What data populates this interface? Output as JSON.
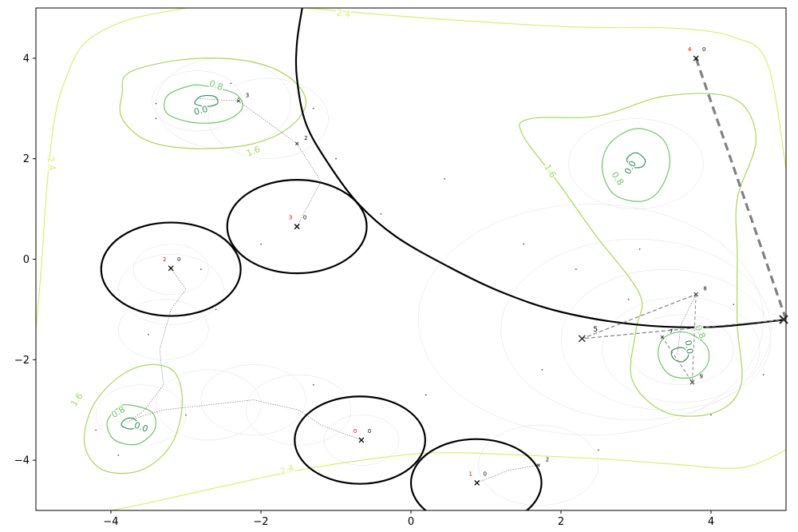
{
  "chart_data": {
    "type": "scatter",
    "title": "",
    "xlabel": "",
    "ylabel": "",
    "xlim": [
      -5,
      5
    ],
    "ylim": [
      -5,
      5
    ],
    "x_ticks": [
      -4,
      -2,
      0,
      2,
      4
    ],
    "y_ticks": [
      -4,
      -2,
      0,
      2,
      4
    ],
    "grid": false,
    "contour_levels": {
      "outer": {
        "color": "#d9ee6e",
        "label": "2.4"
      },
      "mid": {
        "color": "#a7d758",
        "label": "1.6"
      },
      "inner": {
        "color": "#74c46a",
        "label": "0.8"
      },
      "core": {
        "color": "#2f8f5b",
        "label": "0.0"
      }
    },
    "contours": [
      {
        "level": "outer",
        "points": [
          [
            -5,
            -1.4
          ],
          [
            -4.93,
            -0.2
          ],
          [
            -4.85,
            1.5
          ],
          [
            -4.75,
            2.8
          ],
          [
            -4.6,
            3.6
          ],
          [
            -4.35,
            4.3
          ],
          [
            -3.8,
            4.75
          ],
          [
            -3,
            5.0
          ]
        ]
      },
      {
        "level": "outer",
        "points": [
          [
            -1.4,
            5.0
          ],
          [
            0.2,
            4.8
          ],
          [
            2.2,
            4.62
          ],
          [
            3.5,
            4.6
          ],
          [
            4.3,
            4.42
          ],
          [
            4.75,
            3.9
          ],
          [
            5.0,
            1.8
          ]
        ]
      },
      {
        "level": "outer",
        "points": [
          [
            5.0,
            -3.8
          ],
          [
            4.4,
            -4.15
          ],
          [
            3.5,
            -4.08
          ],
          [
            2.6,
            -3.98
          ],
          [
            1.5,
            -3.9
          ],
          [
            0.4,
            -3.85
          ],
          [
            -0.4,
            -3.95
          ],
          [
            -1.5,
            -4.2
          ],
          [
            -2.6,
            -4.55
          ],
          [
            -3.5,
            -4.85
          ],
          [
            -4.0,
            -5.0
          ]
        ]
      },
      {
        "level": "mid",
        "points": [
          [
            -3.75,
            3.72
          ],
          [
            -3.0,
            3.98
          ],
          [
            -2.2,
            3.95
          ],
          [
            -1.65,
            3.65
          ],
          [
            -1.4,
            3.15
          ],
          [
            -1.6,
            2.65
          ],
          [
            -2.1,
            2.3
          ],
          [
            -2.85,
            2.2
          ],
          [
            -3.5,
            2.35
          ],
          [
            -3.85,
            2.8
          ],
          [
            -3.85,
            3.3
          ],
          [
            -3.75,
            3.72
          ]
        ]
      },
      {
        "level": "mid",
        "points": [
          [
            -3.5,
            -2.1
          ],
          [
            -3.15,
            -2.25
          ],
          [
            -3.05,
            -2.9
          ],
          [
            -3.2,
            -3.7
          ],
          [
            -3.6,
            -4.2
          ],
          [
            -4.1,
            -4.2
          ],
          [
            -4.35,
            -3.7
          ],
          [
            -4.25,
            -2.95
          ],
          [
            -3.9,
            -2.35
          ],
          [
            -3.5,
            -2.1
          ]
        ]
      },
      {
        "level": "mid",
        "points": [
          [
            2.5,
            2.85
          ],
          [
            3.4,
            3.25
          ],
          [
            4.3,
            3.2
          ],
          [
            4.6,
            2.4
          ],
          [
            4.35,
            1.2
          ],
          [
            4.35,
            0.1
          ],
          [
            4.35,
            -1.3
          ],
          [
            4.4,
            -2.5
          ],
          [
            4.05,
            -3.05
          ],
          [
            3.4,
            -3.05
          ],
          [
            2.95,
            -2.4
          ],
          [
            3.0,
            -1.4
          ],
          [
            3.05,
            -0.7
          ],
          [
            2.45,
            0.5
          ],
          [
            1.95,
            1.55
          ],
          [
            1.48,
            2.5
          ],
          [
            1.6,
            2.8
          ],
          [
            2.5,
            2.85
          ]
        ]
      },
      {
        "level": "inner",
        "points": [
          [
            -2.75,
            3.45
          ],
          [
            -2.35,
            3.3
          ],
          [
            -2.25,
            3.0
          ],
          [
            -2.5,
            2.75
          ],
          [
            -2.9,
            2.72
          ],
          [
            -3.25,
            2.9
          ],
          [
            -3.25,
            3.25
          ],
          [
            -2.95,
            3.45
          ],
          [
            -2.75,
            3.45
          ]
        ]
      },
      {
        "level": "inner",
        "points": [
          [
            -3.75,
            -2.9
          ],
          [
            -3.45,
            -3.05
          ],
          [
            -3.42,
            -3.4
          ],
          [
            -3.65,
            -3.68
          ],
          [
            -3.95,
            -3.6
          ],
          [
            -4.05,
            -3.25
          ],
          [
            -3.9,
            -2.95
          ],
          [
            -3.75,
            -2.9
          ]
        ]
      },
      {
        "level": "inner",
        "points": [
          [
            3.0,
            2.6
          ],
          [
            3.35,
            2.4
          ],
          [
            3.45,
            1.9
          ],
          [
            3.3,
            1.35
          ],
          [
            3.05,
            1.15
          ],
          [
            2.7,
            1.3
          ],
          [
            2.55,
            1.8
          ],
          [
            2.65,
            2.3
          ],
          [
            3.0,
            2.6
          ]
        ]
      },
      {
        "level": "inner",
        "points": [
          [
            3.75,
            -1.5
          ],
          [
            3.95,
            -1.75
          ],
          [
            3.95,
            -2.1
          ],
          [
            3.75,
            -2.35
          ],
          [
            3.45,
            -2.3
          ],
          [
            3.3,
            -1.95
          ],
          [
            3.35,
            -1.6
          ],
          [
            3.55,
            -1.45
          ],
          [
            3.75,
            -1.5
          ]
        ]
      },
      {
        "level": "core",
        "points": [
          [
            -2.62,
            3.24
          ],
          [
            -2.58,
            3.1
          ],
          [
            -2.72,
            3.04
          ],
          [
            -2.88,
            3.1
          ],
          [
            -2.8,
            3.24
          ],
          [
            -2.62,
            3.24
          ]
        ]
      },
      {
        "level": "core",
        "points": [
          [
            -3.7,
            -3.17
          ],
          [
            -3.63,
            -3.3
          ],
          [
            -3.74,
            -3.38
          ],
          [
            -3.86,
            -3.3
          ],
          [
            -3.8,
            -3.18
          ],
          [
            -3.7,
            -3.17
          ]
        ]
      },
      {
        "level": "core",
        "points": [
          [
            3.0,
            2.12
          ],
          [
            3.12,
            1.98
          ],
          [
            3.08,
            1.84
          ],
          [
            2.94,
            1.84
          ],
          [
            2.88,
            2.0
          ],
          [
            3.0,
            2.12
          ]
        ]
      },
      {
        "level": "core",
        "points": [
          [
            3.62,
            -1.76
          ],
          [
            3.7,
            -1.9
          ],
          [
            3.62,
            -2.04
          ],
          [
            3.5,
            -1.98
          ],
          [
            3.48,
            -1.82
          ],
          [
            3.62,
            -1.76
          ]
        ]
      }
    ],
    "contour_labels": [
      {
        "level": "outer",
        "x": -0.9,
        "y": 4.88,
        "angle": 8
      },
      {
        "level": "outer",
        "x": -4.8,
        "y": 1.9,
        "angle": 80
      },
      {
        "level": "outer",
        "x": -1.65,
        "y": -4.2,
        "angle": -18
      },
      {
        "level": "mid",
        "x": -2.1,
        "y": 2.14,
        "angle": -22
      },
      {
        "level": "mid",
        "x": -4.45,
        "y": -2.8,
        "angle": -55
      },
      {
        "level": "mid",
        "x": 1.85,
        "y": 1.75,
        "angle": 60
      },
      {
        "level": "inner",
        "x": -2.6,
        "y": 3.45,
        "angle": 20
      },
      {
        "level": "inner",
        "x": -3.9,
        "y": -3.05,
        "angle": -30
      },
      {
        "level": "inner",
        "x": 2.75,
        "y": 1.6,
        "angle": 55
      },
      {
        "level": "inner",
        "x": 3.85,
        "y": -1.45,
        "angle": 65
      },
      {
        "level": "core",
        "x": -2.8,
        "y": 2.95,
        "angle": -15
      },
      {
        "level": "core",
        "x": 2.93,
        "y": 1.82,
        "angle": -60
      },
      {
        "level": "core",
        "x": 3.7,
        "y": -1.75,
        "angle": 80
      },
      {
        "level": "core",
        "x": -3.6,
        "y": -3.35,
        "angle": 20
      }
    ],
    "boundary_curve": [
      [
        -1.45,
        5.0
      ],
      [
        -1.52,
        4.3
      ],
      [
        -1.52,
        3.6
      ],
      [
        -1.4,
        2.7
      ],
      [
        -1.1,
        1.9
      ],
      [
        -0.7,
        1.1
      ],
      [
        -0.2,
        0.45
      ],
      [
        0.5,
        -0.15
      ],
      [
        1.2,
        -0.65
      ],
      [
        2.0,
        -1.05
      ],
      [
        3.0,
        -1.3
      ],
      [
        4.0,
        -1.35
      ],
      [
        5.0,
        -1.2
      ]
    ],
    "obstacles": [
      {
        "cx": -3.2,
        "cy": -0.2,
        "rx": 0.93,
        "ry": 0.93
      },
      {
        "cx": -1.52,
        "cy": 0.65,
        "rx": 0.93,
        "ry": 0.93
      },
      {
        "cx": -0.68,
        "cy": -3.6,
        "rx": 0.87,
        "ry": 0.87
      },
      {
        "cx": 0.87,
        "cy": -4.45,
        "rx": 0.87,
        "ry": 0.87
      }
    ],
    "agents": [
      {
        "x": -0.66,
        "y": -3.6,
        "id": "0",
        "count": "0"
      },
      {
        "x": 0.88,
        "y": -4.45,
        "id": "1",
        "count": "0"
      },
      {
        "x": -3.2,
        "y": -0.18,
        "id": "2",
        "count": "0"
      },
      {
        "x": -1.52,
        "y": 0.65,
        "id": "3",
        "count": "0"
      },
      {
        "x": 3.8,
        "y": 4.0,
        "id": "4",
        "count": "0"
      }
    ],
    "agent_id_color": "#dd0000",
    "dashed_paths": [
      {
        "points": [
          [
            3.8,
            4.0
          ],
          [
            5.0,
            -1.2
          ]
        ],
        "width": 3.2,
        "dash": "10,6"
      },
      {
        "points": [
          [
            5.0,
            -1.2
          ],
          [
            2.28,
            -1.58
          ],
          [
            3.8,
            -0.7
          ]
        ],
        "width": 1.2,
        "dash": "5,3"
      },
      {
        "points": [
          [
            3.8,
            -0.7
          ],
          [
            3.75,
            -2.45
          ],
          [
            3.35,
            -1.55
          ]
        ],
        "width": 1.0,
        "dash": "4,3"
      }
    ],
    "path_markers": [
      {
        "x": 2.28,
        "y": -1.58,
        "label": "5",
        "size": "large"
      },
      {
        "x": 3.8,
        "y": -0.7,
        "label": "8",
        "size": "small"
      },
      {
        "x": 3.75,
        "y": -2.45,
        "label": "9",
        "size": "small"
      },
      {
        "x": 3.35,
        "y": -1.55,
        "label": "7",
        "size": "tiny"
      },
      {
        "x": -1.52,
        "y": 2.3,
        "label": "2",
        "size": "tiny"
      },
      {
        "x": -2.3,
        "y": 3.15,
        "label": "3",
        "size": "tiny"
      },
      {
        "x": 1.7,
        "y": -4.1,
        "label": "2",
        "size": "tiny"
      }
    ],
    "end_marker": {
      "x": 5.0,
      "y": -1.2
    },
    "dotted_paths": [
      [
        [
          -1.52,
          0.65
        ],
        [
          -1.2,
          1.55
        ],
        [
          -1.52,
          2.3
        ],
        [
          -2.3,
          3.15
        ],
        [
          -2.85,
          3.2
        ]
      ],
      [
        [
          -3.2,
          -0.18
        ],
        [
          -3.0,
          -0.6
        ],
        [
          -3.2,
          -1.0
        ],
        [
          -3.35,
          -1.8
        ],
        [
          -3.3,
          -2.5
        ],
        [
          -3.55,
          -3.0
        ],
        [
          -3.78,
          -3.25
        ]
      ],
      [
        [
          -0.66,
          -3.6
        ],
        [
          -1.2,
          -3.3
        ],
        [
          -1.5,
          -3.0
        ],
        [
          -2.1,
          -2.8
        ],
        [
          -2.7,
          -2.9
        ],
        [
          -3.3,
          -3.0
        ],
        [
          -3.75,
          -3.2
        ]
      ],
      [
        [
          0.88,
          -4.45
        ],
        [
          1.3,
          -4.2
        ],
        [
          1.7,
          -4.1
        ]
      ],
      [
        [
          3.8,
          -0.7
        ],
        [
          3.6,
          -1.3
        ],
        [
          3.55,
          -1.9
        ]
      ]
    ],
    "faint_circles": [
      {
        "cx": 3.6,
        "cy": -1.8,
        "r": 0.7
      },
      {
        "cx": 3.6,
        "cy": -1.8,
        "r": 1.05
      },
      {
        "cx": 3.4,
        "cy": -1.6,
        "r": 1.4
      },
      {
        "cx": 3.0,
        "cy": -1.4,
        "r": 1.8
      },
      {
        "cx": 2.4,
        "cy": -1.2,
        "r": 2.3
      },
      {
        "cx": -3.2,
        "cy": -0.2,
        "r": 0.5
      },
      {
        "cx": -3.2,
        "cy": -0.6,
        "r": 0.7
      },
      {
        "cx": -3.3,
        "cy": -1.4,
        "r": 0.6
      },
      {
        "cx": -3.6,
        "cy": -3.1,
        "r": 0.6
      },
      {
        "cx": -2.7,
        "cy": -2.9,
        "r": 0.7
      },
      {
        "cx": -2.1,
        "cy": -2.8,
        "r": 0.7
      },
      {
        "cx": -1.5,
        "cy": -3.0,
        "r": 0.7
      },
      {
        "cx": -0.66,
        "cy": -3.6,
        "r": 0.5
      },
      {
        "cx": 1.7,
        "cy": -4.1,
        "r": 0.8
      },
      {
        "cx": 3.0,
        "cy": 1.9,
        "r": 0.9
      },
      {
        "cx": -2.85,
        "cy": 3.15,
        "r": 0.6
      },
      {
        "cx": -2.5,
        "cy": 3.1,
        "r": 0.9
      },
      {
        "cx": -1.9,
        "cy": 2.8,
        "r": 0.8
      }
    ],
    "scatter_dots": [
      [
        -1.0,
        2.0
      ],
      [
        -1.3,
        3.0
      ],
      [
        0.45,
        1.6
      ],
      [
        -0.4,
        0.9
      ],
      [
        1.5,
        0.3
      ],
      [
        2.2,
        -0.2
      ],
      [
        3.05,
        0.2
      ],
      [
        2.9,
        -0.8
      ],
      [
        4.3,
        -0.9
      ],
      [
        4.0,
        -3.1
      ],
      [
        1.75,
        -2.2
      ],
      [
        -2.6,
        -1.0
      ],
      [
        -3.5,
        -1.5
      ],
      [
        -3.9,
        -3.9
      ],
      [
        -4.2,
        -3.4
      ],
      [
        -3.0,
        -3.1
      ],
      [
        -2.3,
        3.2
      ],
      [
        -3.4,
        3.1
      ],
      [
        -2.0,
        0.3
      ],
      [
        0.2,
        -2.7
      ],
      [
        2.5,
        -3.8
      ],
      [
        -1.3,
        -2.5
      ],
      [
        4.7,
        -2.3
      ],
      [
        -2.8,
        -0.2
      ],
      [
        -3.4,
        2.8
      ],
      [
        -2.4,
        3.5
      ]
    ]
  }
}
